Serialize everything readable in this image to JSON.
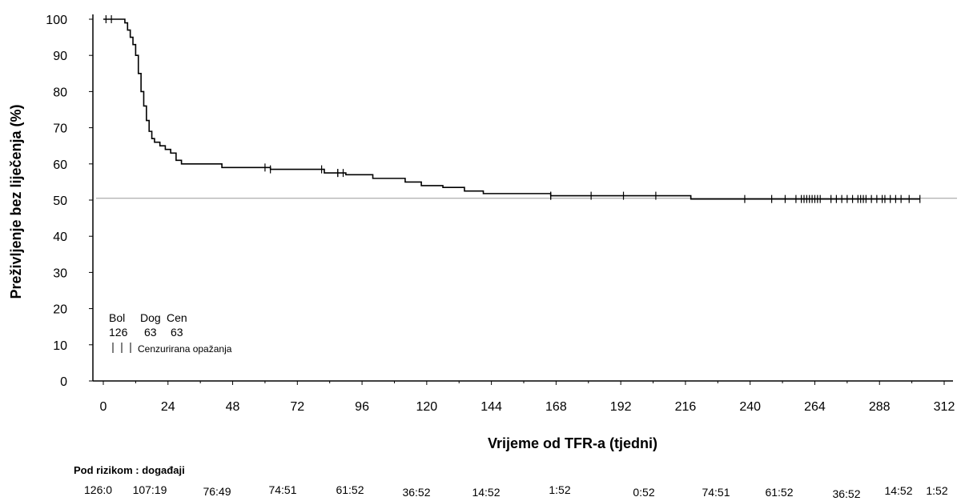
{
  "chart_data": {
    "type": "line",
    "title": "",
    "xlabel": "Vrijeme od TFR-a (tjedni)",
    "ylabel": "Preživljenje bez liječenja (%)",
    "xlim": [
      0,
      312
    ],
    "ylim": [
      0,
      100
    ],
    "x_ticks": [
      0,
      24,
      48,
      72,
      96,
      120,
      144,
      168,
      192,
      216,
      240,
      264,
      288,
      312
    ],
    "y_ticks": [
      0,
      10,
      20,
      30,
      40,
      50,
      60,
      70,
      80,
      90,
      100
    ],
    "grid": false,
    "reference_line_y": 50.5,
    "series": [
      {
        "name": "",
        "color": "#000000",
        "step_points": [
          [
            0,
            100
          ],
          [
            8,
            99
          ],
          [
            9,
            97
          ],
          [
            10,
            95
          ],
          [
            11,
            93
          ],
          [
            12,
            90
          ],
          [
            13,
            85
          ],
          [
            14,
            80
          ],
          [
            15,
            76
          ],
          [
            16,
            72
          ],
          [
            17,
            69
          ],
          [
            18,
            67
          ],
          [
            19,
            66
          ],
          [
            21,
            65
          ],
          [
            23,
            64
          ],
          [
            25,
            63
          ],
          [
            27,
            61
          ],
          [
            29,
            60
          ],
          [
            44,
            59
          ],
          [
            62,
            58.5
          ],
          [
            82,
            57.5
          ],
          [
            90,
            57
          ],
          [
            100,
            56
          ],
          [
            112,
            55
          ],
          [
            118,
            54
          ],
          [
            126,
            53.5
          ],
          [
            134,
            52.5
          ],
          [
            141,
            51.8
          ],
          [
            166,
            51.2
          ],
          [
            218,
            50.3
          ],
          [
            303,
            50.3
          ]
        ],
        "censor_marks": [
          1,
          3,
          60,
          62,
          81,
          87,
          87,
          89,
          166,
          166,
          181,
          193,
          205,
          238,
          248,
          253,
          257,
          259,
          260,
          261,
          262,
          263,
          264,
          265,
          266,
          270,
          272,
          274,
          276,
          278,
          280,
          281,
          282,
          283,
          285,
          287,
          289,
          290,
          292,
          294,
          296,
          299,
          303
        ]
      }
    ],
    "legend_block": {
      "headers": [
        "Bol",
        "Dog",
        "Cen"
      ],
      "values": [
        "126",
        "63",
        "63"
      ],
      "censor_note": "Cenzurirana opažanja"
    },
    "at_risk": {
      "heading": "Pod rizikom : događaji",
      "values": [
        "126:0",
        "107:19",
        "76:49",
        "74:51",
        "61:52",
        "36:52",
        "14:52",
        "1:52",
        "0:52",
        "74:51",
        "61:52",
        "36:52",
        "14:52",
        "1:52"
      ]
    }
  }
}
